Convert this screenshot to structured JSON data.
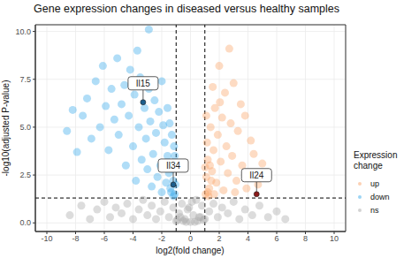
{
  "chart_data": {
    "type": "scatter",
    "title": "Gene expression changes in diseased versus healthy samples",
    "x_label": "log2(fold change)",
    "y_label": "-log10(adjusted P-value)",
    "xlim": [
      -10.8,
      10.8
    ],
    "ylim": [
      -0.45,
      10.35
    ],
    "xticks": [
      -10,
      -8,
      -6,
      -4,
      -2,
      0,
      2,
      4,
      6,
      8,
      10
    ],
    "yticks": [
      {
        "value": 0,
        "label": "0.0"
      },
      {
        "value": 2.5,
        "label": "2.5"
      },
      {
        "value": 5,
        "label": "5.0"
      },
      {
        "value": 7.5,
        "label": "7.5"
      },
      {
        "value": 10,
        "label": "10.0"
      }
    ],
    "grid": true,
    "legend": "right",
    "legend_title": "Expression change",
    "thresholds": {
      "x": [
        -1,
        1
      ],
      "y": 1.3
    },
    "series": [
      {
        "name": "up",
        "color": "#f9a46a",
        "marker": "circle",
        "x": [
          1.05,
          1.1,
          1.2,
          1.15,
          1.3,
          1.4,
          1.5,
          1.6,
          1.7,
          1.8,
          1.9,
          2.0,
          2.1,
          2.2,
          2.3,
          2.4,
          2.5,
          2.6,
          2.7,
          2.8,
          2.9,
          3.0,
          3.2,
          3.3,
          3.5,
          3.6,
          3.8,
          4.0,
          4.2,
          4.4,
          4.7,
          5.0,
          5.3,
          1.25,
          1.35,
          1.55,
          1.1,
          1.2,
          1.65,
          2.05,
          1.45,
          3.1,
          3.9,
          1.02
        ],
        "values": [
          1.5,
          2.4,
          3.3,
          4.2,
          1.8,
          5.0,
          2.7,
          3.8,
          6.0,
          2.1,
          4.6,
          8.2,
          3.2,
          5.5,
          1.7,
          6.8,
          4.0,
          2.6,
          9.1,
          5.2,
          3.5,
          7.3,
          2.2,
          4.8,
          6.2,
          3.0,
          5.6,
          2.5,
          4.3,
          3.6,
          2.0,
          3.1,
          2.4,
          1.4,
          3.0,
          7.1,
          5.6,
          1.6,
          1.5,
          6.3,
          2.2,
          1.6,
          1.8,
          2.9
        ]
      },
      {
        "name": "down",
        "color": "#3aa9ea",
        "marker": "circle",
        "x": [
          -1.1,
          -1.2,
          -1.3,
          -1.15,
          -1.4,
          -1.5,
          -1.6,
          -1.3,
          -1.7,
          -1.8,
          -1.9,
          -2.0,
          -2.1,
          -2.2,
          -2.3,
          -2.4,
          -2.5,
          -2.6,
          -2.7,
          -2.8,
          -2.9,
          -3.0,
          -3.1,
          -3.2,
          -3.4,
          -3.5,
          -3.6,
          -3.8,
          -3.9,
          -4.0,
          -4.2,
          -4.3,
          -4.5,
          -4.6,
          -4.8,
          -5.0,
          -5.1,
          -5.3,
          -5.5,
          -5.7,
          -5.9,
          -6.1,
          -6.3,
          -6.6,
          -6.9,
          -7.2,
          -7.5,
          -7.9,
          -8.2,
          -8.6,
          -3.7,
          -2.9,
          -1.2,
          -1.25,
          -1.1,
          -1.45,
          -1.05,
          -1.6,
          -2.0,
          -1.35
        ],
        "values": [
          1.5,
          2.2,
          3.1,
          4.0,
          1.8,
          2.6,
          3.5,
          4.6,
          2.1,
          4.2,
          5.1,
          1.6,
          3.0,
          5.8,
          2.4,
          4.7,
          6.4,
          3.6,
          1.9,
          5.3,
          7.0,
          2.8,
          4.4,
          6.0,
          3.3,
          7.6,
          5.0,
          2.2,
          6.7,
          4.0,
          8.0,
          5.6,
          3.0,
          7.2,
          6.2,
          4.6,
          8.6,
          5.4,
          7.0,
          3.8,
          6.1,
          8.2,
          5.0,
          7.4,
          4.4,
          6.5,
          5.6,
          3.7,
          5.9,
          4.8,
          9.0,
          10.1,
          1.4,
          2.8,
          3.5,
          5.2,
          2.0,
          6.0,
          7.4,
          1.6
        ]
      },
      {
        "name": "ns",
        "color": "#a8a8a8",
        "marker": "circle",
        "x": [
          -8.4,
          -7.6,
          -7.0,
          -6.5,
          -6.0,
          -5.6,
          -5.2,
          -4.8,
          -4.4,
          -4.0,
          -3.6,
          -3.3,
          -3.0,
          -2.7,
          -2.4,
          -2.1,
          -1.8,
          -1.5,
          -1.2,
          -1.0,
          -0.8,
          -0.6,
          -0.4,
          -0.2,
          0.0,
          0.2,
          0.4,
          0.6,
          0.8,
          1.0,
          1.3,
          1.6,
          1.9,
          2.2,
          2.6,
          3.0,
          3.4,
          3.8,
          4.3,
          4.8,
          5.4,
          6.0,
          6.6,
          -0.9,
          -0.5,
          0.5,
          0.9,
          -0.3,
          0.3,
          -0.7,
          0.7,
          0.1,
          -0.1
        ],
        "values": [
          0.4,
          0.9,
          0.2,
          0.7,
          1.1,
          0.3,
          0.8,
          0.5,
          1.0,
          0.2,
          0.7,
          1.2,
          0.4,
          0.9,
          0.2,
          0.6,
          1.1,
          0.3,
          0.8,
          0.1,
          0.5,
          1.0,
          0.2,
          0.7,
          0.05,
          0.4,
          1.2,
          0.3,
          0.9,
          0.2,
          0.6,
          1.0,
          0.3,
          0.8,
          0.5,
          1.1,
          0.2,
          0.7,
          0.4,
          0.9,
          0.3,
          0.6,
          0.2,
          0.15,
          0.1,
          0.1,
          0.15,
          0.05,
          0.05,
          0.3,
          0.3,
          1.1,
          0.8
        ]
      }
    ],
    "annotations": [
      {
        "label": "Il15",
        "x": -3.3,
        "y": 6.3,
        "color": "#1d5e8c"
      },
      {
        "label": "Il34",
        "x": -1.2,
        "y": 2.0,
        "color": "#1d5e8c"
      },
      {
        "label": "Il24",
        "x": 4.6,
        "y": 1.5,
        "color": "#8b1a1a"
      }
    ]
  }
}
